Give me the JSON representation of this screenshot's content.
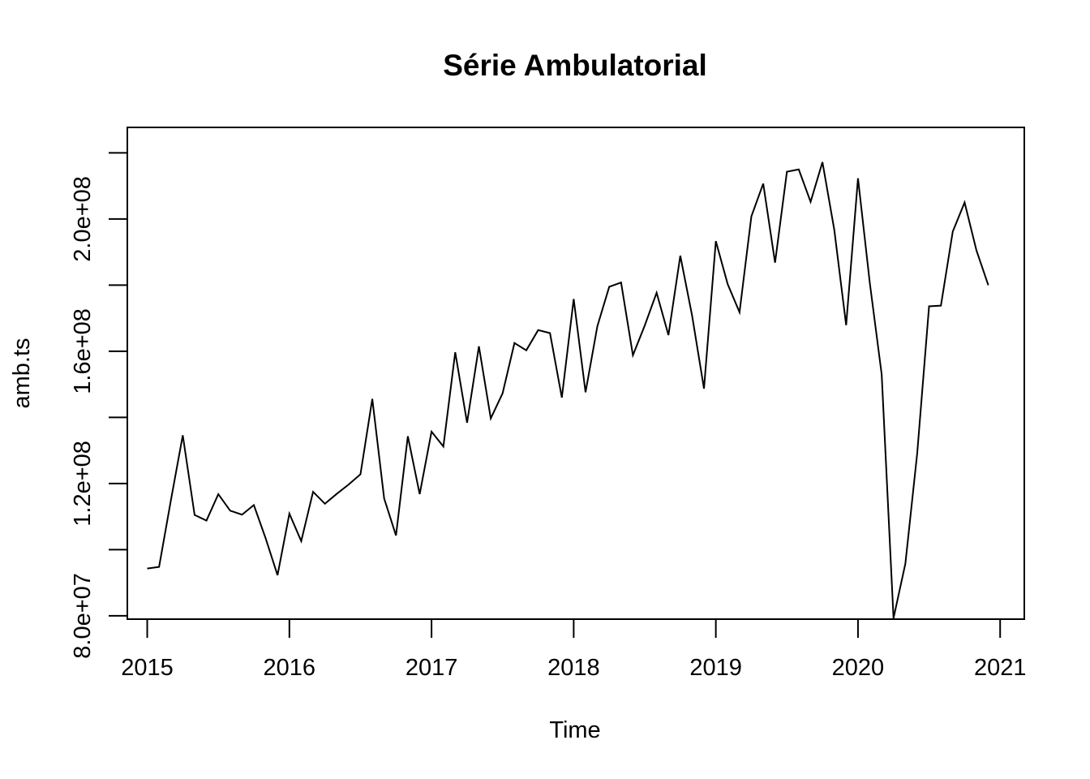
{
  "chart_data": {
    "type": "line",
    "title": "Série Ambulatorial",
    "xlabel": "Time",
    "ylabel": "amb.ts",
    "xlim": [
      2014.86,
      2021.17
    ],
    "ylim": [
      79000000,
      227700000
    ],
    "x_ticks": [
      2015,
      2016,
      2017,
      2018,
      2019,
      2020,
      2021
    ],
    "x_tick_labels": [
      "2015",
      "2016",
      "2017",
      "2018",
      "2019",
      "2020",
      "2021"
    ],
    "y_ticks": [
      80000000,
      100000000,
      120000000,
      140000000,
      160000000,
      180000000,
      200000000,
      220000000
    ],
    "y_tick_labels": [
      "8.0e+07",
      "1.2e+08",
      "1.6e+08",
      "2.0e+08"
    ],
    "y_tick_label_values": [
      80000000,
      120000000,
      160000000,
      200000000
    ],
    "series": [
      {
        "start": 2015,
        "frequency": 12,
        "values": [
          94300000,
          94800000,
          115000000,
          134600000,
          110500000,
          108800000,
          116800000,
          111800000,
          110600000,
          113500000,
          103400000,
          92300000,
          110900000,
          102600000,
          117500000,
          113900000,
          116900000,
          119700000,
          122800000,
          145600000,
          115500000,
          104300000,
          134300000,
          116800000,
          135700000,
          131200000,
          159700000,
          138400000,
          161500000,
          139700000,
          147300000,
          162500000,
          160300000,
          166400000,
          165500000,
          146000000,
          175800000,
          147600000,
          167600000,
          179500000,
          180800000,
          158800000,
          167800000,
          177700000,
          164900000,
          188900000,
          170700000,
          148700000,
          193300000,
          180300000,
          171800000,
          200800000,
          210700000,
          186800000,
          214300000,
          215000000,
          205200000,
          217200000,
          196700000,
          167900000,
          212300000,
          180600000,
          153000000,
          79300000,
          95800000,
          129200000,
          173600000,
          173800000,
          196200000,
          205000000,
          190500000,
          180000000
        ]
      }
    ]
  }
}
